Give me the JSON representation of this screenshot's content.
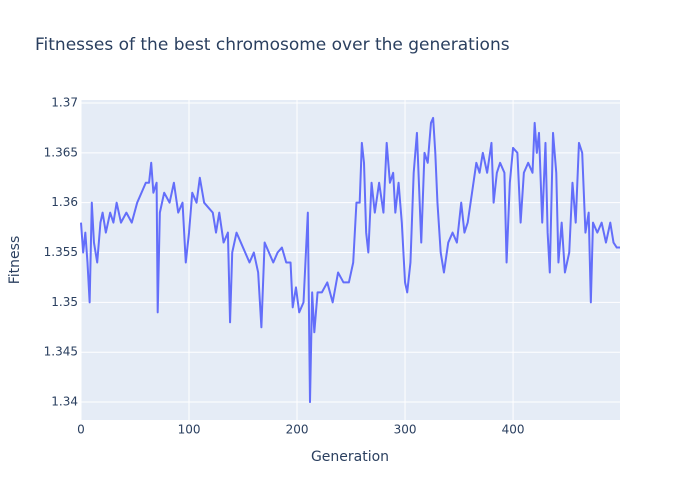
{
  "chart_data": {
    "type": "line",
    "title": "Fitnesses of the best chromosome over the generations",
    "x_label": "Generation",
    "y_label": "Fitness",
    "xlim": [
      0,
      499
    ],
    "ylim": [
      1.3382,
      1.3703
    ],
    "xticks": [
      0,
      100,
      200,
      300,
      400
    ],
    "yticks": [
      1.34,
      1.345,
      1.35,
      1.355,
      1.36,
      1.365,
      1.37
    ],
    "grid": true,
    "series": [
      {
        "name": "Fitness",
        "color": "#636efa",
        "x": [
          0,
          2,
          4,
          6,
          8,
          10,
          12,
          15,
          18,
          20,
          23,
          27,
          30,
          33,
          37,
          42,
          47,
          52,
          56,
          60,
          63,
          65,
          67,
          70,
          71,
          73,
          77,
          82,
          86,
          90,
          94,
          97,
          100,
          103,
          107,
          110,
          114,
          118,
          122,
          125,
          128,
          132,
          136,
          138,
          140,
          144,
          148,
          152,
          156,
          160,
          164,
          167,
          170,
          174,
          178,
          182,
          186,
          190,
          194,
          196,
          199,
          202,
          206,
          210,
          212,
          214,
          216,
          219,
          223,
          228,
          233,
          238,
          243,
          248,
          252,
          255,
          258,
          260,
          262,
          264,
          266,
          269,
          272,
          276,
          280,
          283,
          286,
          289,
          291,
          294,
          297,
          300,
          302,
          305,
          308,
          311,
          315,
          318,
          321,
          324,
          326,
          328,
          330,
          333,
          336,
          340,
          344,
          348,
          352,
          355,
          358,
          362,
          366,
          369,
          372,
          376,
          380,
          382,
          385,
          388,
          392,
          394,
          397,
          400,
          404,
          407,
          410,
          414,
          418,
          420,
          422,
          424,
          427,
          430,
          432,
          434,
          437,
          440,
          442,
          445,
          448,
          452,
          455,
          458,
          461,
          464,
          467,
          470,
          472,
          474,
          478,
          482,
          486,
          490,
          493,
          496,
          499
        ],
        "values": [
          1.358,
          1.355,
          1.357,
          1.354,
          1.35,
          1.36,
          1.356,
          1.354,
          1.358,
          1.359,
          1.357,
          1.359,
          1.358,
          1.36,
          1.358,
          1.359,
          1.358,
          1.36,
          1.361,
          1.362,
          1.362,
          1.364,
          1.361,
          1.362,
          1.349,
          1.359,
          1.361,
          1.36,
          1.362,
          1.359,
          1.36,
          1.354,
          1.357,
          1.361,
          1.36,
          1.3625,
          1.36,
          1.3595,
          1.359,
          1.357,
          1.359,
          1.356,
          1.357,
          1.348,
          1.355,
          1.357,
          1.356,
          1.355,
          1.354,
          1.355,
          1.353,
          1.3475,
          1.356,
          1.355,
          1.354,
          1.355,
          1.3555,
          1.354,
          1.354,
          1.3495,
          1.3515,
          1.349,
          1.35,
          1.359,
          1.34,
          1.351,
          1.347,
          1.351,
          1.351,
          1.352,
          1.35,
          1.353,
          1.352,
          1.352,
          1.354,
          1.36,
          1.36,
          1.366,
          1.364,
          1.357,
          1.355,
          1.362,
          1.359,
          1.362,
          1.359,
          1.366,
          1.362,
          1.363,
          1.359,
          1.362,
          1.358,
          1.352,
          1.351,
          1.354,
          1.363,
          1.367,
          1.356,
          1.365,
          1.364,
          1.368,
          1.3685,
          1.365,
          1.36,
          1.355,
          1.353,
          1.356,
          1.357,
          1.356,
          1.36,
          1.357,
          1.358,
          1.361,
          1.364,
          1.363,
          1.365,
          1.363,
          1.366,
          1.36,
          1.363,
          1.364,
          1.363,
          1.354,
          1.362,
          1.3655,
          1.365,
          1.358,
          1.363,
          1.364,
          1.363,
          1.368,
          1.365,
          1.367,
          1.358,
          1.366,
          1.357,
          1.353,
          1.367,
          1.363,
          1.354,
          1.358,
          1.353,
          1.355,
          1.362,
          1.358,
          1.366,
          1.365,
          1.357,
          1.359,
          1.35,
          1.358,
          1.357,
          1.358,
          1.356,
          1.358,
          1.356,
          1.3555,
          1.3555
        ]
      }
    ]
  }
}
